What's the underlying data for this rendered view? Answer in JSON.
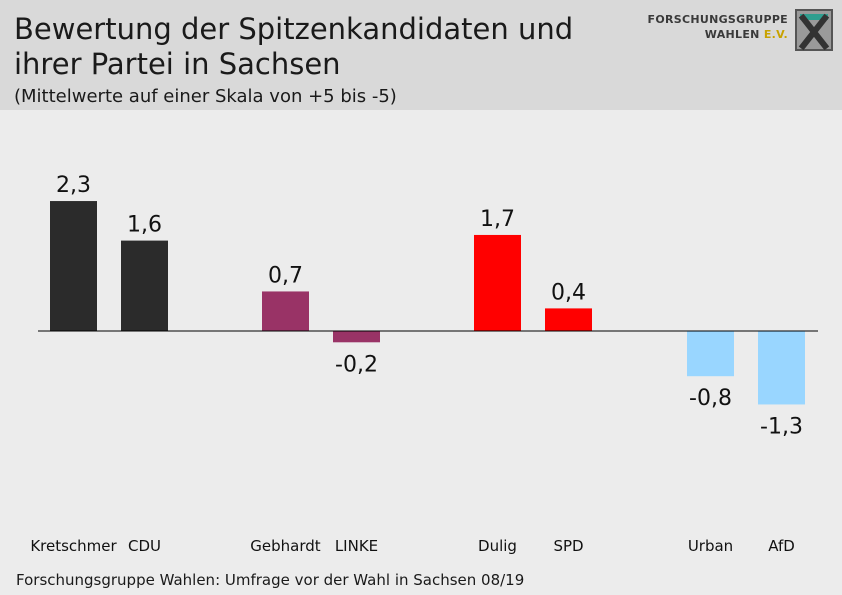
{
  "header": {
    "title": "Bewertung der Spitzenkandidaten und ihrer Partei in Sachsen",
    "subtitle": "(Mittelwerte auf einer Skala von +5 bis -5)"
  },
  "logo": {
    "line1": "FORSCHUNGSGRUPPE",
    "line2": "WAHLEN",
    "line2_suffix": "E.V."
  },
  "footer": {
    "source": "Forschungsgruppe Wahlen: Umfrage vor der Wahl in Sachsen 08/19"
  },
  "chart_data": {
    "type": "bar",
    "categories": [
      "Kretschmer",
      "CDU",
      "Gebhardt",
      "LINKE",
      "Dulig",
      "SPD",
      "Urban",
      "AfD"
    ],
    "values": [
      2.3,
      1.6,
      0.7,
      -0.2,
      1.7,
      0.4,
      -0.8,
      -1.3
    ],
    "value_labels": [
      "2,3",
      "1,6",
      "0,7",
      "-0,2",
      "1,7",
      "0,4",
      "-0,8",
      "-1,3"
    ],
    "colors": [
      "#2b2b2b",
      "#2b2b2b",
      "#993366",
      "#993366",
      "#ff0000",
      "#ff0000",
      "#99d6ff",
      "#99d6ff"
    ],
    "groups": [
      "CDU",
      "CDU",
      "LINKE",
      "LINKE",
      "SPD",
      "SPD",
      "AfD",
      "AfD"
    ],
    "title": "Bewertung der Spitzenkandidaten und ihrer Partei in Sachsen",
    "xlabel": "",
    "ylabel": "",
    "ylim": [
      -5,
      5
    ],
    "grid": false
  }
}
